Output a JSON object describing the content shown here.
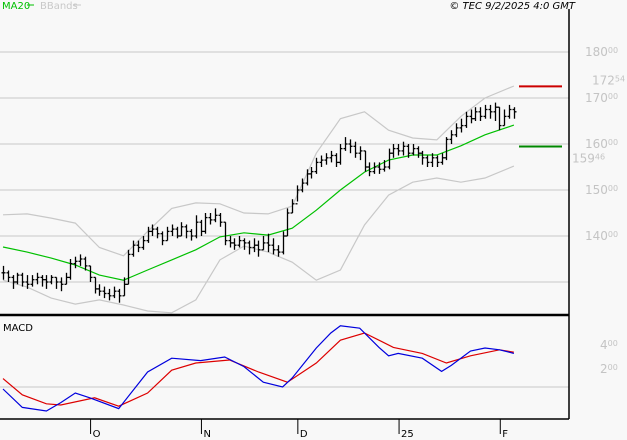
{
  "header": {
    "legend": [
      {
        "label": "MA20",
        "color": "#00c000"
      },
      {
        "label": "BBands",
        "color": "#c8c8c8"
      }
    ],
    "copyright": "© TEC 9/2/2025 4:0 GMT"
  },
  "colors": {
    "bars": "#000000",
    "ma20": "#00c000",
    "bbands": "#c8c8c8",
    "macd": "#0000dd",
    "signal": "#dd0000",
    "resistance": "#cc0000",
    "support": "#008800",
    "grid": "#c8c8c8"
  },
  "chart_data": [
    {
      "type": "ohlc",
      "panel": "price",
      "y_ticks": [
        {
          "value": 180,
          "int": "180",
          "dec": "00"
        },
        {
          "value": 170,
          "int": "170",
          "dec": "00"
        },
        {
          "value": 160,
          "int": "160",
          "dec": "00"
        },
        {
          "value": 150,
          "int": "150",
          "dec": "00"
        },
        {
          "value": 140,
          "int": "140",
          "dec": "00"
        }
      ],
      "gridlines": [
        130,
        140,
        150,
        160,
        170,
        180
      ],
      "ylim": [
        123,
        190
      ],
      "x_ticks": [
        {
          "label": "O",
          "bar": 19
        },
        {
          "label": "N",
          "bar": 42
        },
        {
          "label": "D",
          "bar": 62
        },
        {
          "label": "25",
          "bar": 83
        },
        {
          "label": "F",
          "bar": 104
        }
      ],
      "bars_hlc": [
        [
          133.5,
          130.5,
          132
        ],
        [
          132.5,
          130,
          131
        ],
        [
          131.5,
          128.5,
          130
        ],
        [
          132,
          129.5,
          131.5
        ],
        [
          132,
          129,
          130
        ],
        [
          131.5,
          128.5,
          129.5
        ],
        [
          131.5,
          129,
          130.5
        ],
        [
          132,
          129.5,
          131
        ],
        [
          131.5,
          129,
          130.5
        ],
        [
          131.5,
          128.5,
          130
        ],
        [
          131.5,
          129.5,
          131
        ],
        [
          131,
          128.5,
          130
        ],
        [
          131,
          128,
          129.5
        ],
        [
          132,
          129.5,
          131
        ],
        [
          135,
          130.5,
          134
        ],
        [
          135.5,
          133,
          134.5
        ],
        [
          136,
          133.5,
          135
        ],
        [
          135.5,
          132.5,
          133.5
        ],
        [
          133.5,
          130,
          131
        ],
        [
          131,
          127.5,
          128.5
        ],
        [
          129.5,
          127,
          128
        ],
        [
          129,
          126.5,
          127.5
        ],
        [
          128.5,
          126,
          127
        ],
        [
          129,
          126.5,
          128
        ],
        [
          128.5,
          125.5,
          127
        ],
        [
          131,
          127,
          129.5
        ],
        [
          137,
          129.5,
          136
        ],
        [
          139,
          135.5,
          138
        ],
        [
          139,
          136.5,
          137.5
        ],
        [
          140,
          137,
          139
        ],
        [
          142,
          138.5,
          141
        ],
        [
          142.5,
          140,
          141.5
        ],
        [
          142,
          139.5,
          140.5
        ],
        [
          141,
          138,
          139
        ],
        [
          142,
          139,
          141
        ],
        [
          142.5,
          140,
          141.5
        ],
        [
          142,
          139.5,
          140
        ],
        [
          143,
          140,
          142
        ],
        [
          142.5,
          139.5,
          141
        ],
        [
          141.5,
          139,
          140
        ],
        [
          144.5,
          139.5,
          143
        ],
        [
          143.5,
          140,
          141
        ],
        [
          145,
          140.5,
          144
        ],
        [
          145,
          142.5,
          143.5
        ],
        [
          146,
          143,
          144.5
        ],
        [
          145,
          142,
          143
        ],
        [
          143,
          138,
          139
        ],
        [
          140,
          137.5,
          138.5
        ],
        [
          139.5,
          137,
          138
        ],
        [
          140,
          137.5,
          139
        ],
        [
          139.5,
          137,
          138.5
        ],
        [
          139,
          136,
          137.5
        ],
        [
          139.5,
          136.5,
          138
        ],
        [
          139,
          135.5,
          137
        ],
        [
          140,
          137,
          138.5
        ],
        [
          140.5,
          136.5,
          138
        ],
        [
          139.5,
          136,
          137
        ],
        [
          138,
          135.5,
          136.5
        ],
        [
          141,
          136,
          140
        ],
        [
          146,
          140,
          145
        ],
        [
          148,
          145,
          147
        ],
        [
          151,
          147.5,
          150
        ],
        [
          152.5,
          149.5,
          151.5
        ],
        [
          154.5,
          151,
          153.5
        ],
        [
          155,
          152.5,
          154
        ],
        [
          157,
          153.5,
          156
        ],
        [
          157.5,
          155,
          156.5
        ],
        [
          158,
          155.5,
          157
        ],
        [
          158.5,
          156,
          157.5
        ],
        [
          158,
          155,
          156
        ],
        [
          160,
          155.5,
          159
        ],
        [
          161.5,
          158.5,
          160
        ],
        [
          161,
          158,
          159.5
        ],
        [
          160.5,
          157,
          158
        ],
        [
          159.5,
          156.5,
          158.5
        ],
        [
          158.5,
          154,
          155
        ],
        [
          156,
          153,
          154
        ],
        [
          156,
          153.5,
          155
        ],
        [
          156,
          153.5,
          154.5
        ],
        [
          156.5,
          154,
          155
        ],
        [
          159,
          154.5,
          158
        ],
        [
          160,
          157,
          159
        ],
        [
          160,
          157.5,
          158.5
        ],
        [
          160.5,
          157.5,
          159.5
        ],
        [
          160,
          157,
          158
        ],
        [
          160,
          157.5,
          159
        ],
        [
          159.5,
          157,
          158
        ],
        [
          158.5,
          155.5,
          157
        ],
        [
          157.5,
          155,
          156
        ],
        [
          158,
          155,
          157
        ],
        [
          157.5,
          155,
          156
        ],
        [
          158,
          155.5,
          157
        ],
        [
          161.5,
          156.5,
          161
        ],
        [
          163,
          160,
          162
        ],
        [
          164.5,
          161.5,
          163.5
        ],
        [
          165.5,
          162.5,
          164
        ],
        [
          167,
          163.5,
          166
        ],
        [
          167.5,
          164.5,
          165.5
        ],
        [
          168,
          165,
          167
        ],
        [
          168,
          165,
          166
        ],
        [
          168.5,
          165.5,
          167.5
        ],
        [
          168.5,
          165.5,
          167
        ],
        [
          169,
          165,
          168
        ],
        [
          168,
          163,
          164
        ],
        [
          167.5,
          164,
          166
        ],
        [
          168.5,
          165.5,
          167.5
        ],
        [
          168,
          165.5,
          167
        ]
      ],
      "ma20": [
        [
          0,
          137.6
        ],
        [
          5,
          136.5
        ],
        [
          10,
          135.2
        ],
        [
          15,
          133.7
        ],
        [
          20,
          131.5
        ],
        [
          25,
          130.4
        ],
        [
          30,
          132.6
        ],
        [
          35,
          134.8
        ],
        [
          40,
          137
        ],
        [
          45,
          139.8
        ],
        [
          50,
          140.7
        ],
        [
          55,
          140.2
        ],
        [
          60,
          141.7
        ],
        [
          65,
          145.6
        ],
        [
          70,
          150
        ],
        [
          75,
          153.9
        ],
        [
          80,
          156.5
        ],
        [
          85,
          157.6
        ],
        [
          90,
          157.6
        ],
        [
          95,
          159.6
        ],
        [
          100,
          162
        ],
        [
          106,
          164.1
        ]
      ],
      "bband_upper": [
        [
          0,
          144.6
        ],
        [
          5,
          144.8
        ],
        [
          10,
          143.9
        ],
        [
          15,
          142.8
        ],
        [
          20,
          137.5
        ],
        [
          25,
          135.7
        ],
        [
          30,
          141
        ],
        [
          35,
          146
        ],
        [
          40,
          147.2
        ],
        [
          45,
          147
        ],
        [
          50,
          145
        ],
        [
          55,
          144.8
        ],
        [
          60,
          146.5
        ],
        [
          65,
          158
        ],
        [
          70,
          165.5
        ],
        [
          75,
          167
        ],
        [
          80,
          163
        ],
        [
          85,
          161.3
        ],
        [
          90,
          160.9
        ],
        [
          95,
          166
        ],
        [
          100,
          170
        ],
        [
          106,
          172.6
        ]
      ],
      "bband_lower": [
        [
          0,
          130.4
        ],
        [
          5,
          128.9
        ],
        [
          10,
          126.5
        ],
        [
          15,
          125.2
        ],
        [
          20,
          126.1
        ],
        [
          25,
          125
        ],
        [
          30,
          123.7
        ],
        [
          35,
          123.3
        ],
        [
          40,
          126.1
        ],
        [
          45,
          134.8
        ],
        [
          50,
          137.8
        ],
        [
          55,
          136.5
        ],
        [
          60,
          134.3
        ],
        [
          65,
          130.4
        ],
        [
          70,
          132.6
        ],
        [
          75,
          142.4
        ],
        [
          80,
          148.9
        ],
        [
          85,
          151.7
        ],
        [
          90,
          152.6
        ],
        [
          95,
          151.7
        ],
        [
          100,
          152.6
        ],
        [
          106,
          155.2
        ]
      ],
      "levels": [
        {
          "value": 172.54,
          "int": "172",
          "dec": "54",
          "kind": "resistance"
        },
        {
          "value": 159.46,
          "int": "159",
          "dec": "46",
          "kind": "support"
        }
      ]
    },
    {
      "type": "line",
      "panel": "MACD",
      "title": "MACD",
      "y_ticks": [
        {
          "value": 4,
          "int": "4",
          "dec": "00"
        },
        {
          "value": 2,
          "int": "2",
          "dec": "00"
        }
      ],
      "macd": [
        [
          0,
          0.33
        ],
        [
          4,
          -1.2
        ],
        [
          9,
          -1.5
        ],
        [
          12,
          -0.8
        ],
        [
          15,
          0
        ],
        [
          18,
          -0.4
        ],
        [
          24,
          -1.3
        ],
        [
          30,
          1.75
        ],
        [
          35,
          2.9
        ],
        [
          41,
          2.7
        ],
        [
          46,
          3.0
        ],
        [
          50,
          2.2
        ],
        [
          54,
          0.9
        ],
        [
          58,
          0.5
        ],
        [
          60,
          1.25
        ],
        [
          65,
          3.75
        ],
        [
          68,
          5
        ],
        [
          70,
          5.6
        ],
        [
          74,
          5.4
        ],
        [
          78,
          3.8
        ],
        [
          80,
          3.1
        ],
        [
          82,
          3.3
        ],
        [
          87,
          2.9
        ],
        [
          91,
          1.8
        ],
        [
          93,
          2.3
        ],
        [
          97,
          3.5
        ],
        [
          100,
          3.75
        ],
        [
          103,
          3.6
        ],
        [
          106,
          3.3
        ]
      ],
      "signal": [
        [
          0,
          1.2
        ],
        [
          4,
          -0.15
        ],
        [
          9,
          -0.9
        ],
        [
          12,
          -1
        ],
        [
          19,
          -0.4
        ],
        [
          24,
          -1.1
        ],
        [
          30,
          0
        ],
        [
          35,
          1.9
        ],
        [
          40,
          2.5
        ],
        [
          47,
          2.75
        ],
        [
          53,
          1.75
        ],
        [
          59,
          0.9
        ],
        [
          65,
          2.5
        ],
        [
          70,
          4.4
        ],
        [
          75,
          5
        ],
        [
          81,
          3.8
        ],
        [
          87,
          3.3
        ],
        [
          92,
          2.5
        ],
        [
          97,
          3.1
        ],
        [
          103,
          3.6
        ],
        [
          106,
          3.4
        ]
      ]
    }
  ]
}
